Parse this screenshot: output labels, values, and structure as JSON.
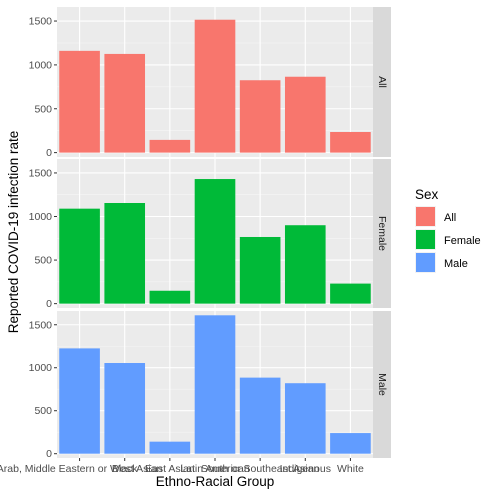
{
  "chart_data": {
    "type": "bar",
    "xlabel": "Ethno-Racial Group",
    "ylabel": "Reported COVID-19 infection rate",
    "categories": [
      "Arab, Middle Eastern or West Asian",
      "Black",
      "East Asian",
      "Latin American",
      "South or Southeast Asian",
      "Indigenous",
      "White"
    ],
    "ylim": [
      -50,
      1660
    ],
    "yticks": [
      0,
      500,
      1000,
      1500
    ],
    "grid": true,
    "legend": {
      "title": "Sex",
      "position": "right",
      "entries": [
        "All",
        "Female",
        "Male"
      ]
    },
    "colors": {
      "All": "#F8766D",
      "Female": "#00BA38",
      "Male": "#619CFF"
    },
    "panel_background": "#EBEBEB",
    "strip_background": "#D9D9D9",
    "panels": [
      {
        "strip": "All",
        "fill": "#F8766D",
        "values": [
          1160,
          1125,
          145,
          1515,
          825,
          865,
          235
        ]
      },
      {
        "strip": "Female",
        "fill": "#00BA38",
        "values": [
          1090,
          1155,
          148,
          1430,
          765,
          900,
          230
        ]
      },
      {
        "strip": "Male",
        "fill": "#619CFF",
        "values": [
          1225,
          1055,
          140,
          1610,
          885,
          820,
          240
        ]
      }
    ]
  }
}
